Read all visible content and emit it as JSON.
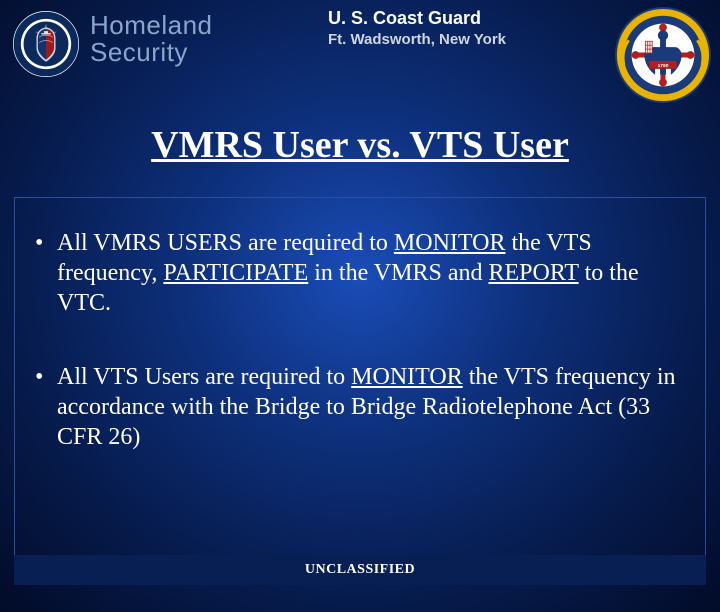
{
  "colors": {
    "bg_inner": "#1a4db8",
    "bg_outer": "#020b28",
    "border": "#2a4fa0",
    "footer_bg": "#071f52",
    "text_white": "#ffffff",
    "dhs_text": "#8aa5cc",
    "subheader": "#d0d6e0"
  },
  "header": {
    "dhs_line1": "Homeland",
    "dhs_line2": "Security",
    "center_line1": "U. S. Coast Guard",
    "center_line2": "Ft. Wadsworth, New York",
    "dhs_seal_alt": "dhs-seal-icon",
    "uscg_seal_alt": "uscg-seal-icon"
  },
  "title": "VMRS User vs. VTS User",
  "bullets": [
    {
      "segments": [
        {
          "t": "All VMRS USERS are required to ",
          "u": false
        },
        {
          "t": "MONITOR",
          "u": true
        },
        {
          "t": " the VTS frequency, ",
          "u": false
        },
        {
          "t": "PARTICIPATE",
          "u": true
        },
        {
          "t": " in the VMRS and ",
          "u": false
        },
        {
          "t": "REPORT",
          "u": true
        },
        {
          "t": " to the VTC.",
          "u": false
        }
      ]
    },
    {
      "segments": [
        {
          "t": "All VTS Users are required to ",
          "u": false
        },
        {
          "t": "MONITOR",
          "u": true
        },
        {
          "t": " the VTS frequency in accordance with the Bridge to Bridge Radiotelephone Act (33 CFR 26)",
          "u": false
        }
      ]
    }
  ],
  "footer": "UNCLASSIFIED",
  "typography": {
    "title_fontsize": 38,
    "body_fontsize": 24,
    "header_fontsize": 18,
    "subheader_fontsize": 15,
    "dhs_fontsize": 26,
    "footer_fontsize": 14
  }
}
